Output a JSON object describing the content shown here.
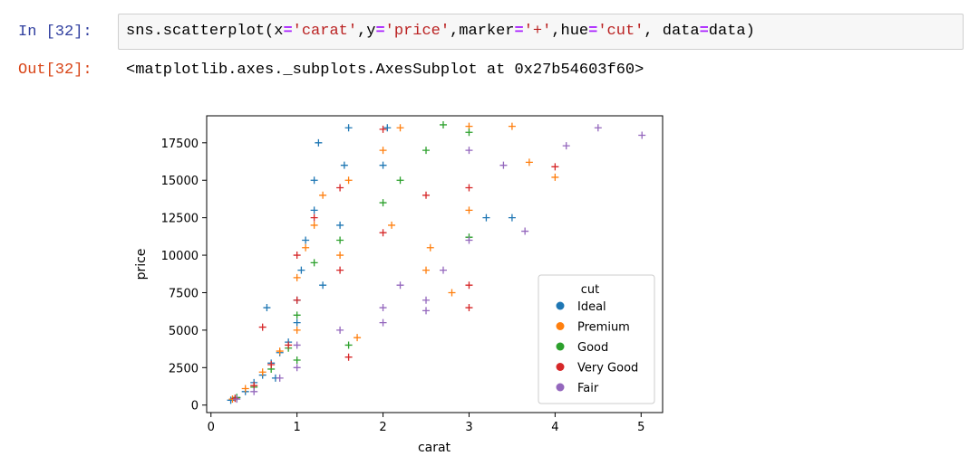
{
  "cell": {
    "in_prompt": "In [32]:",
    "out_prompt": "Out[32]:",
    "code_tokens": [
      {
        "t": "sns.scatterplot(x",
        "c": ""
      },
      {
        "t": "=",
        "c": "op"
      },
      {
        "t": "'carat'",
        "c": "str"
      },
      {
        "t": ",y",
        "c": ""
      },
      {
        "t": "=",
        "c": "op"
      },
      {
        "t": "'price'",
        "c": "str"
      },
      {
        "t": ",marker",
        "c": ""
      },
      {
        "t": "=",
        "c": "op"
      },
      {
        "t": "'+'",
        "c": "str"
      },
      {
        "t": ",hue",
        "c": ""
      },
      {
        "t": "=",
        "c": "op"
      },
      {
        "t": "'cut'",
        "c": "str"
      },
      {
        "t": ", data",
        "c": ""
      },
      {
        "t": "=",
        "c": "op"
      },
      {
        "t": "data)",
        "c": ""
      }
    ],
    "output_text": "<matplotlib.axes._subplots.AxesSubplot at 0x27b54603f60>"
  },
  "chart_data": {
    "type": "scatter",
    "xlabel": "carat",
    "ylabel": "price",
    "xlim": [
      -0.05,
      5.25
    ],
    "ylim": [
      -500,
      19300
    ],
    "xticks": [
      0,
      1,
      2,
      3,
      4,
      5
    ],
    "yticks": [
      0,
      2500,
      5000,
      7500,
      10000,
      12500,
      15000,
      17500
    ],
    "marker": "+",
    "grid": false,
    "legend": {
      "title": "cut",
      "placement": "lower-right"
    },
    "series": [
      {
        "name": "Ideal",
        "color": "#1f77b4",
        "points": [
          [
            0.23,
            326
          ],
          [
            0.3,
            500
          ],
          [
            0.4,
            900
          ],
          [
            0.5,
            1500
          ],
          [
            0.6,
            2000
          ],
          [
            0.7,
            2800
          ],
          [
            0.8,
            3500
          ],
          [
            0.9,
            4200
          ],
          [
            1.0,
            5500
          ],
          [
            1.0,
            7000
          ],
          [
            1.05,
            9000
          ],
          [
            1.1,
            11000
          ],
          [
            1.2,
            13000
          ],
          [
            1.2,
            15000
          ],
          [
            1.25,
            17500
          ],
          [
            1.5,
            12000
          ],
          [
            1.55,
            16000
          ],
          [
            1.6,
            18500
          ],
          [
            2.0,
            16000
          ],
          [
            2.05,
            18500
          ],
          [
            3.2,
            12500
          ],
          [
            3.5,
            12500
          ],
          [
            0.65,
            6500
          ],
          [
            1.3,
            8000
          ],
          [
            0.75,
            1800
          ]
        ]
      },
      {
        "name": "Premium",
        "color": "#ff7f0e",
        "points": [
          [
            0.25,
            400
          ],
          [
            0.4,
            1100
          ],
          [
            0.6,
            2200
          ],
          [
            0.8,
            3600
          ],
          [
            1.0,
            5000
          ],
          [
            1.0,
            8500
          ],
          [
            1.1,
            10500
          ],
          [
            1.2,
            12000
          ],
          [
            1.3,
            14000
          ],
          [
            1.5,
            10000
          ],
          [
            1.6,
            15000
          ],
          [
            2.0,
            17000
          ],
          [
            2.1,
            12000
          ],
          [
            2.2,
            18500
          ],
          [
            2.5,
            9000
          ],
          [
            2.55,
            10500
          ],
          [
            3.0,
            18600
          ],
          [
            3.0,
            13000
          ],
          [
            3.5,
            18600
          ],
          [
            3.7,
            16200
          ],
          [
            4.0,
            15200
          ],
          [
            2.8,
            7500
          ],
          [
            1.7,
            4500
          ]
        ]
      },
      {
        "name": "Good",
        "color": "#2ca02c",
        "points": [
          [
            0.3,
            500
          ],
          [
            0.5,
            1200
          ],
          [
            0.7,
            2400
          ],
          [
            0.9,
            3800
          ],
          [
            1.0,
            6000
          ],
          [
            1.2,
            9500
          ],
          [
            1.5,
            11000
          ],
          [
            1.6,
            4000
          ],
          [
            2.0,
            13500
          ],
          [
            2.2,
            15000
          ],
          [
            2.5,
            17000
          ],
          [
            2.7,
            18700
          ],
          [
            3.0,
            18200
          ],
          [
            3.0,
            11200
          ],
          [
            1.0,
            3000
          ]
        ]
      },
      {
        "name": "Very Good",
        "color": "#d62728",
        "points": [
          [
            0.28,
            450
          ],
          [
            0.5,
            1300
          ],
          [
            0.7,
            2700
          ],
          [
            0.9,
            4000
          ],
          [
            1.0,
            7000
          ],
          [
            1.0,
            10000
          ],
          [
            1.2,
            12500
          ],
          [
            1.5,
            9000
          ],
          [
            1.5,
            14500
          ],
          [
            1.6,
            3200
          ],
          [
            2.0,
            11500
          ],
          [
            2.0,
            18400
          ],
          [
            2.5,
            14000
          ],
          [
            3.0,
            14500
          ],
          [
            3.0,
            8000
          ],
          [
            3.0,
            6500
          ],
          [
            4.0,
            15900
          ],
          [
            0.6,
            5200
          ]
        ]
      },
      {
        "name": "Fair",
        "color": "#9467bd",
        "points": [
          [
            0.3,
            400
          ],
          [
            0.5,
            900
          ],
          [
            0.8,
            1800
          ],
          [
            1.0,
            2500
          ],
          [
            1.0,
            4000
          ],
          [
            1.5,
            5000
          ],
          [
            2.0,
            6500
          ],
          [
            2.2,
            8000
          ],
          [
            2.5,
            6300
          ],
          [
            2.5,
            7000
          ],
          [
            2.7,
            9000
          ],
          [
            3.0,
            17000
          ],
          [
            3.0,
            11000
          ],
          [
            3.4,
            16000
          ],
          [
            3.65,
            11600
          ],
          [
            4.13,
            17300
          ],
          [
            4.5,
            18500
          ],
          [
            5.01,
            18000
          ],
          [
            2.0,
            5500
          ]
        ]
      }
    ]
  }
}
